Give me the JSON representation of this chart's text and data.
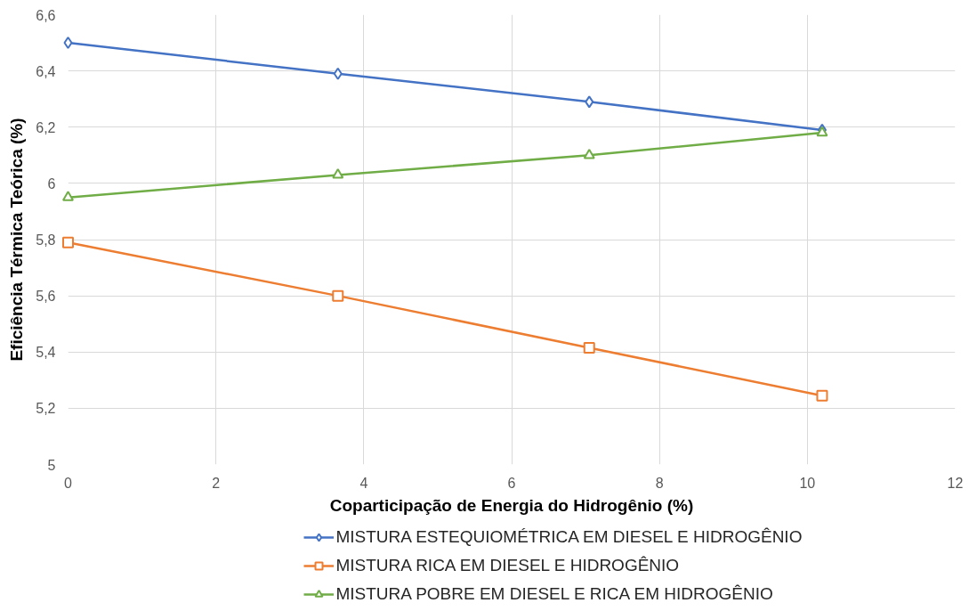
{
  "chart_data": {
    "type": "line",
    "xlabel": "Coparticipação de Energia do Hidrogênio (%)",
    "ylabel": "Eficiência Térmica Teórica (%)",
    "x": [
      0,
      3.65,
      7.05,
      10.2
    ],
    "series": [
      {
        "name": "MISTURA ESTEQUIOMÉTRICA EM DIESEL E HIDROGÊNIO",
        "color": "#4472c4",
        "marker": "diamond",
        "values": [
          6.5,
          6.39,
          6.29,
          6.19
        ]
      },
      {
        "name": "MISTURA RICA EM DIESEL E HIDROGÊNIO",
        "color": "#ed7d31",
        "marker": "square",
        "values": [
          5.79,
          5.6,
          5.415,
          5.245
        ]
      },
      {
        "name": "MISTURA POBRE EM DIESEL E RICA EM HIDROGÊNIO",
        "color": "#70ad47",
        "marker": "triangle",
        "values": [
          5.95,
          6.03,
          6.1,
          6.18
        ]
      }
    ],
    "xlim": [
      0,
      12
    ],
    "xticks": [
      0,
      2,
      4,
      6,
      8,
      10,
      12
    ],
    "ylim": [
      5,
      6.6
    ],
    "yticks": [
      5,
      {
        "value": 5.2,
        "label": "5,2"
      },
      {
        "value": 5.4,
        "label": "5,4"
      },
      {
        "value": 5.6,
        "label": "5,6"
      },
      {
        "value": 5.8,
        "label": "5,8"
      },
      6,
      {
        "value": 6.2,
        "label": "6,2"
      },
      {
        "value": 6.4,
        "label": "6,4"
      },
      {
        "value": 6.6,
        "label": "6,6"
      }
    ],
    "grid": true,
    "legend": "bottom",
    "line_style": "solid"
  }
}
